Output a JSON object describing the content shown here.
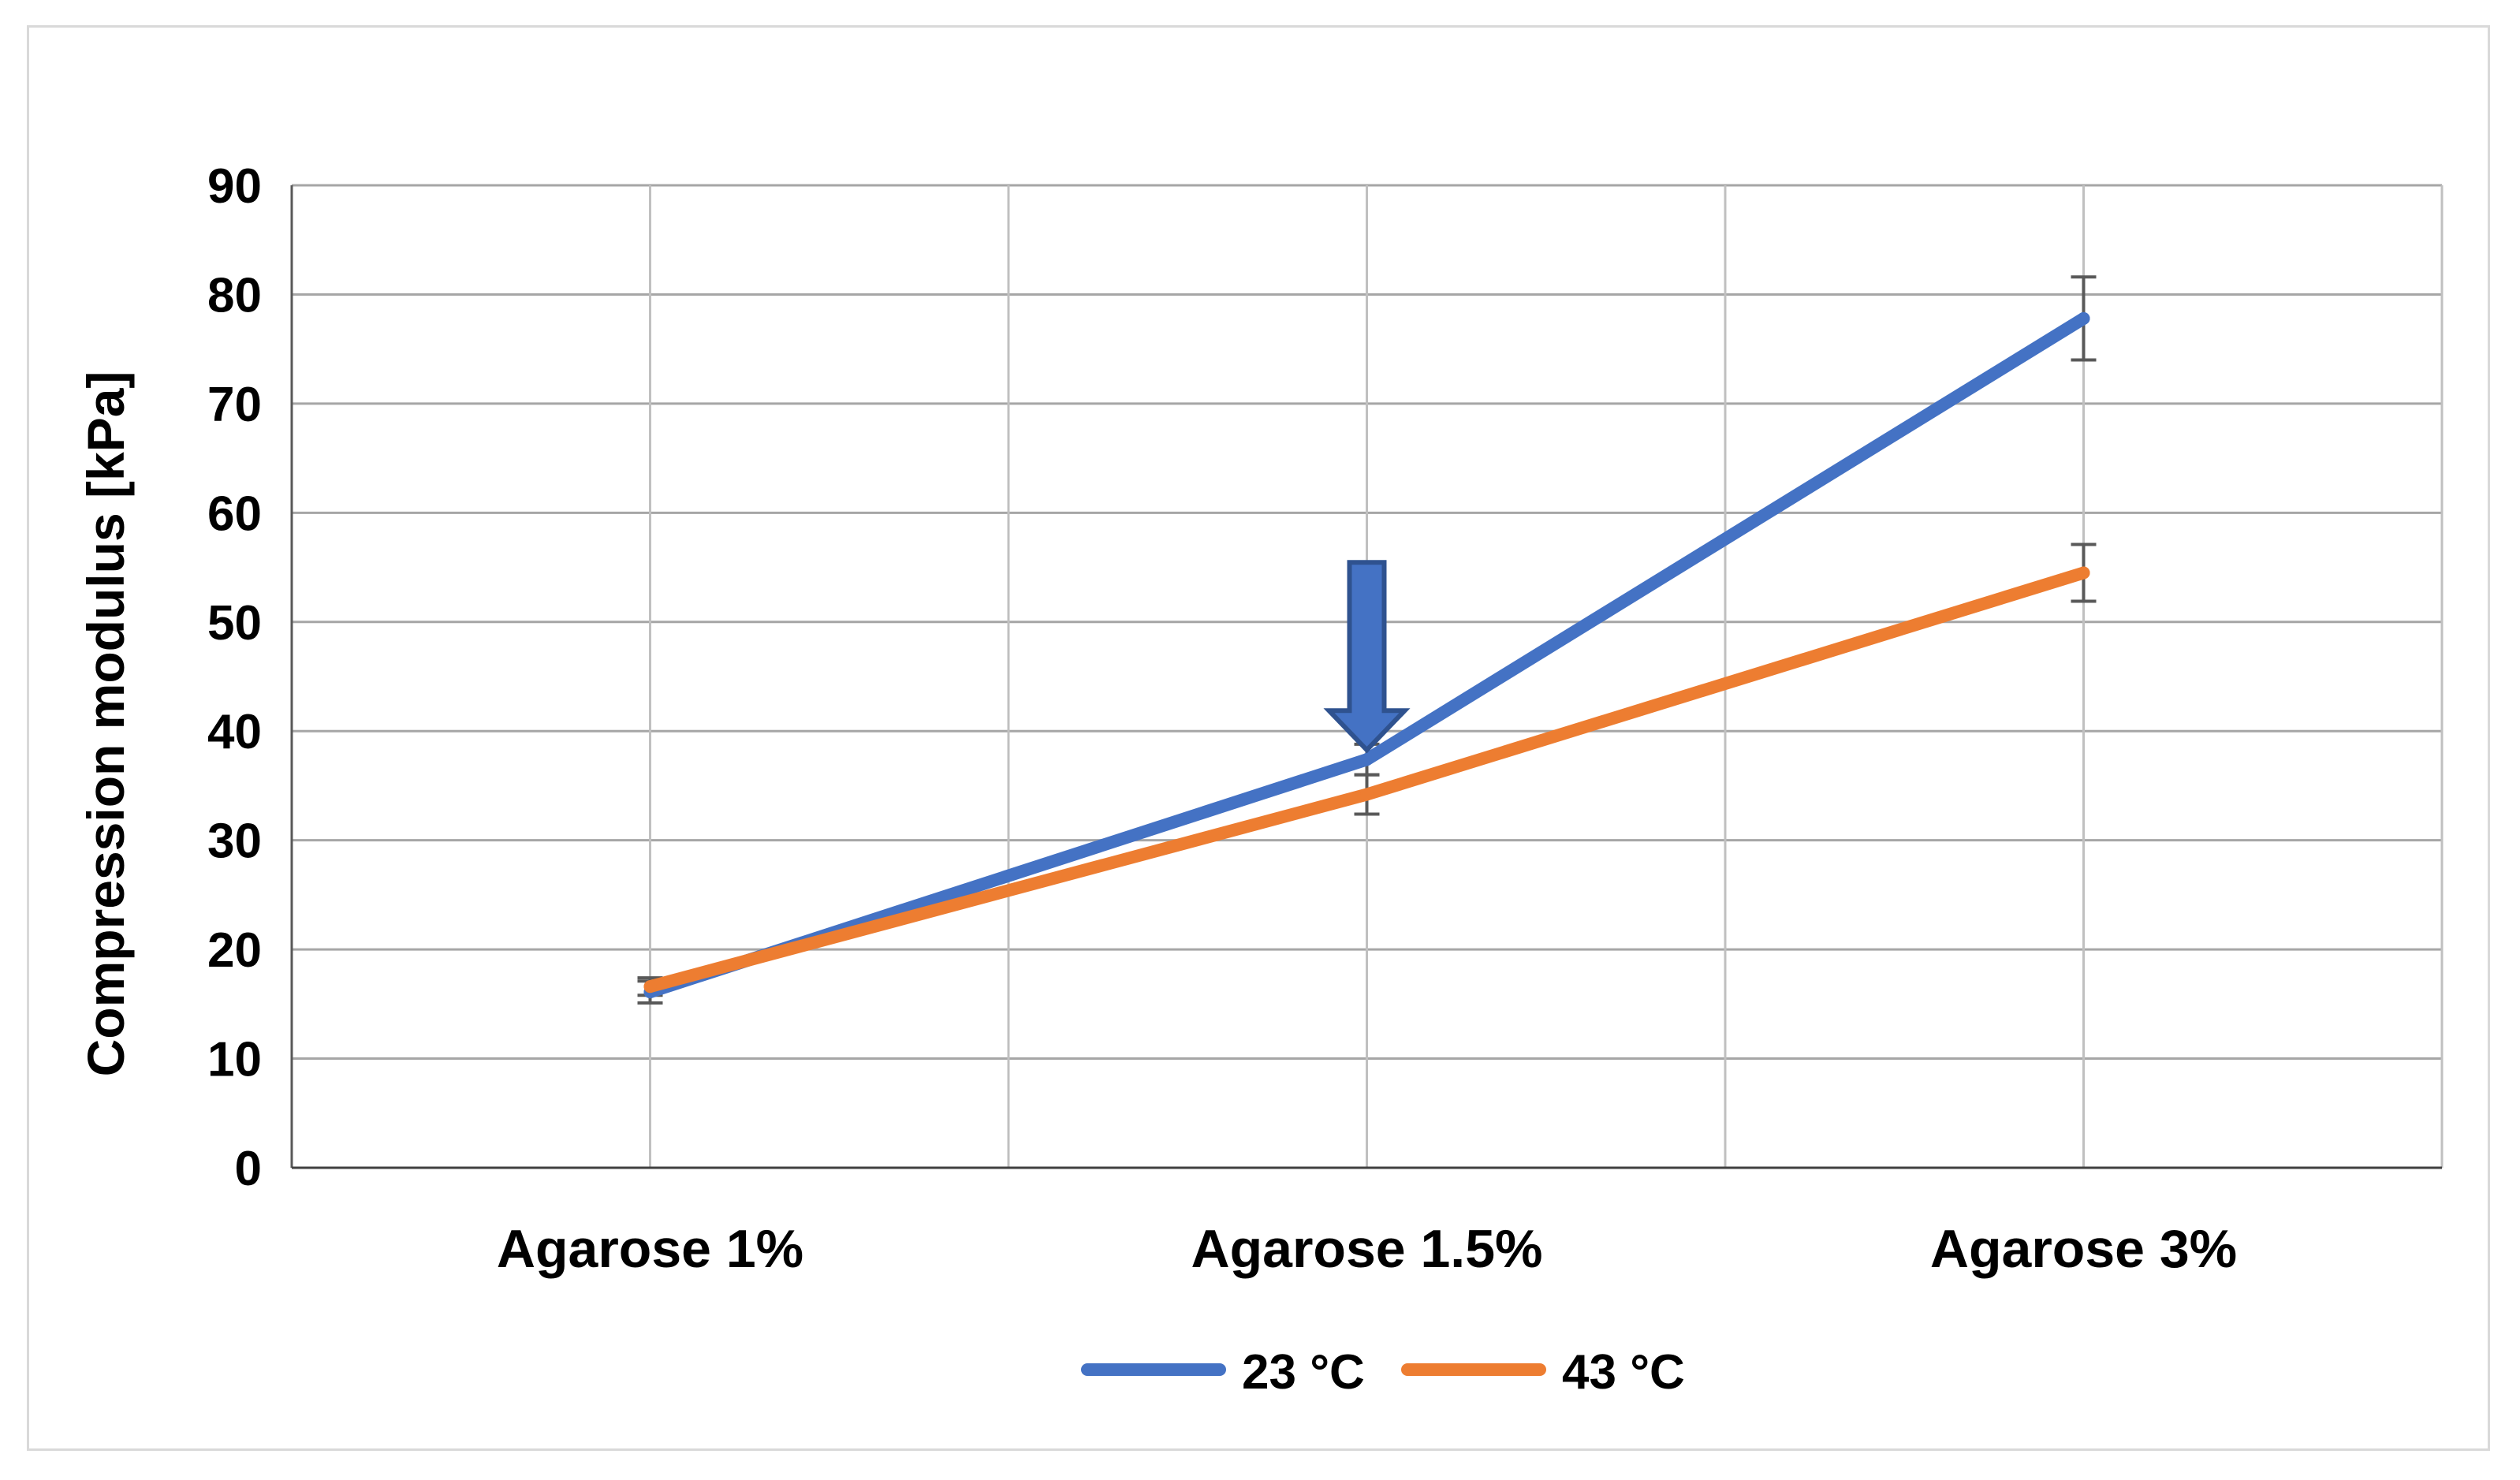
{
  "chart_data": {
    "type": "line",
    "title": "",
    "xlabel": "",
    "ylabel": "Compression modulus [kPa]",
    "categories": [
      "Agarose  1%",
      "Agarose  1.5%",
      "Agarose  3%"
    ],
    "ylim": [
      0,
      90
    ],
    "yticks": [
      0,
      10,
      20,
      30,
      40,
      50,
      60,
      70,
      80,
      90
    ],
    "ytick_labels": [
      "0",
      "10",
      "20",
      "30",
      "40",
      "50",
      "60",
      "70",
      "80",
      "90"
    ],
    "grid": true,
    "legend_position": "bottom",
    "series": [
      {
        "name": "23 °C",
        "color": "#4472c4",
        "values": [
          16.1,
          37.4,
          77.8
        ],
        "errors": [
          1.0,
          1.4,
          3.8
        ]
      },
      {
        "name": "43 °C",
        "color": "#ed7d31",
        "values": [
          16.6,
          34.2,
          54.5
        ],
        "errors": [
          0.8,
          1.8,
          2.6
        ]
      }
    ],
    "annotations": [
      {
        "type": "arrow",
        "direction": "down",
        "category": "Agarose  1.5%",
        "color": "#4472c4"
      }
    ]
  }
}
